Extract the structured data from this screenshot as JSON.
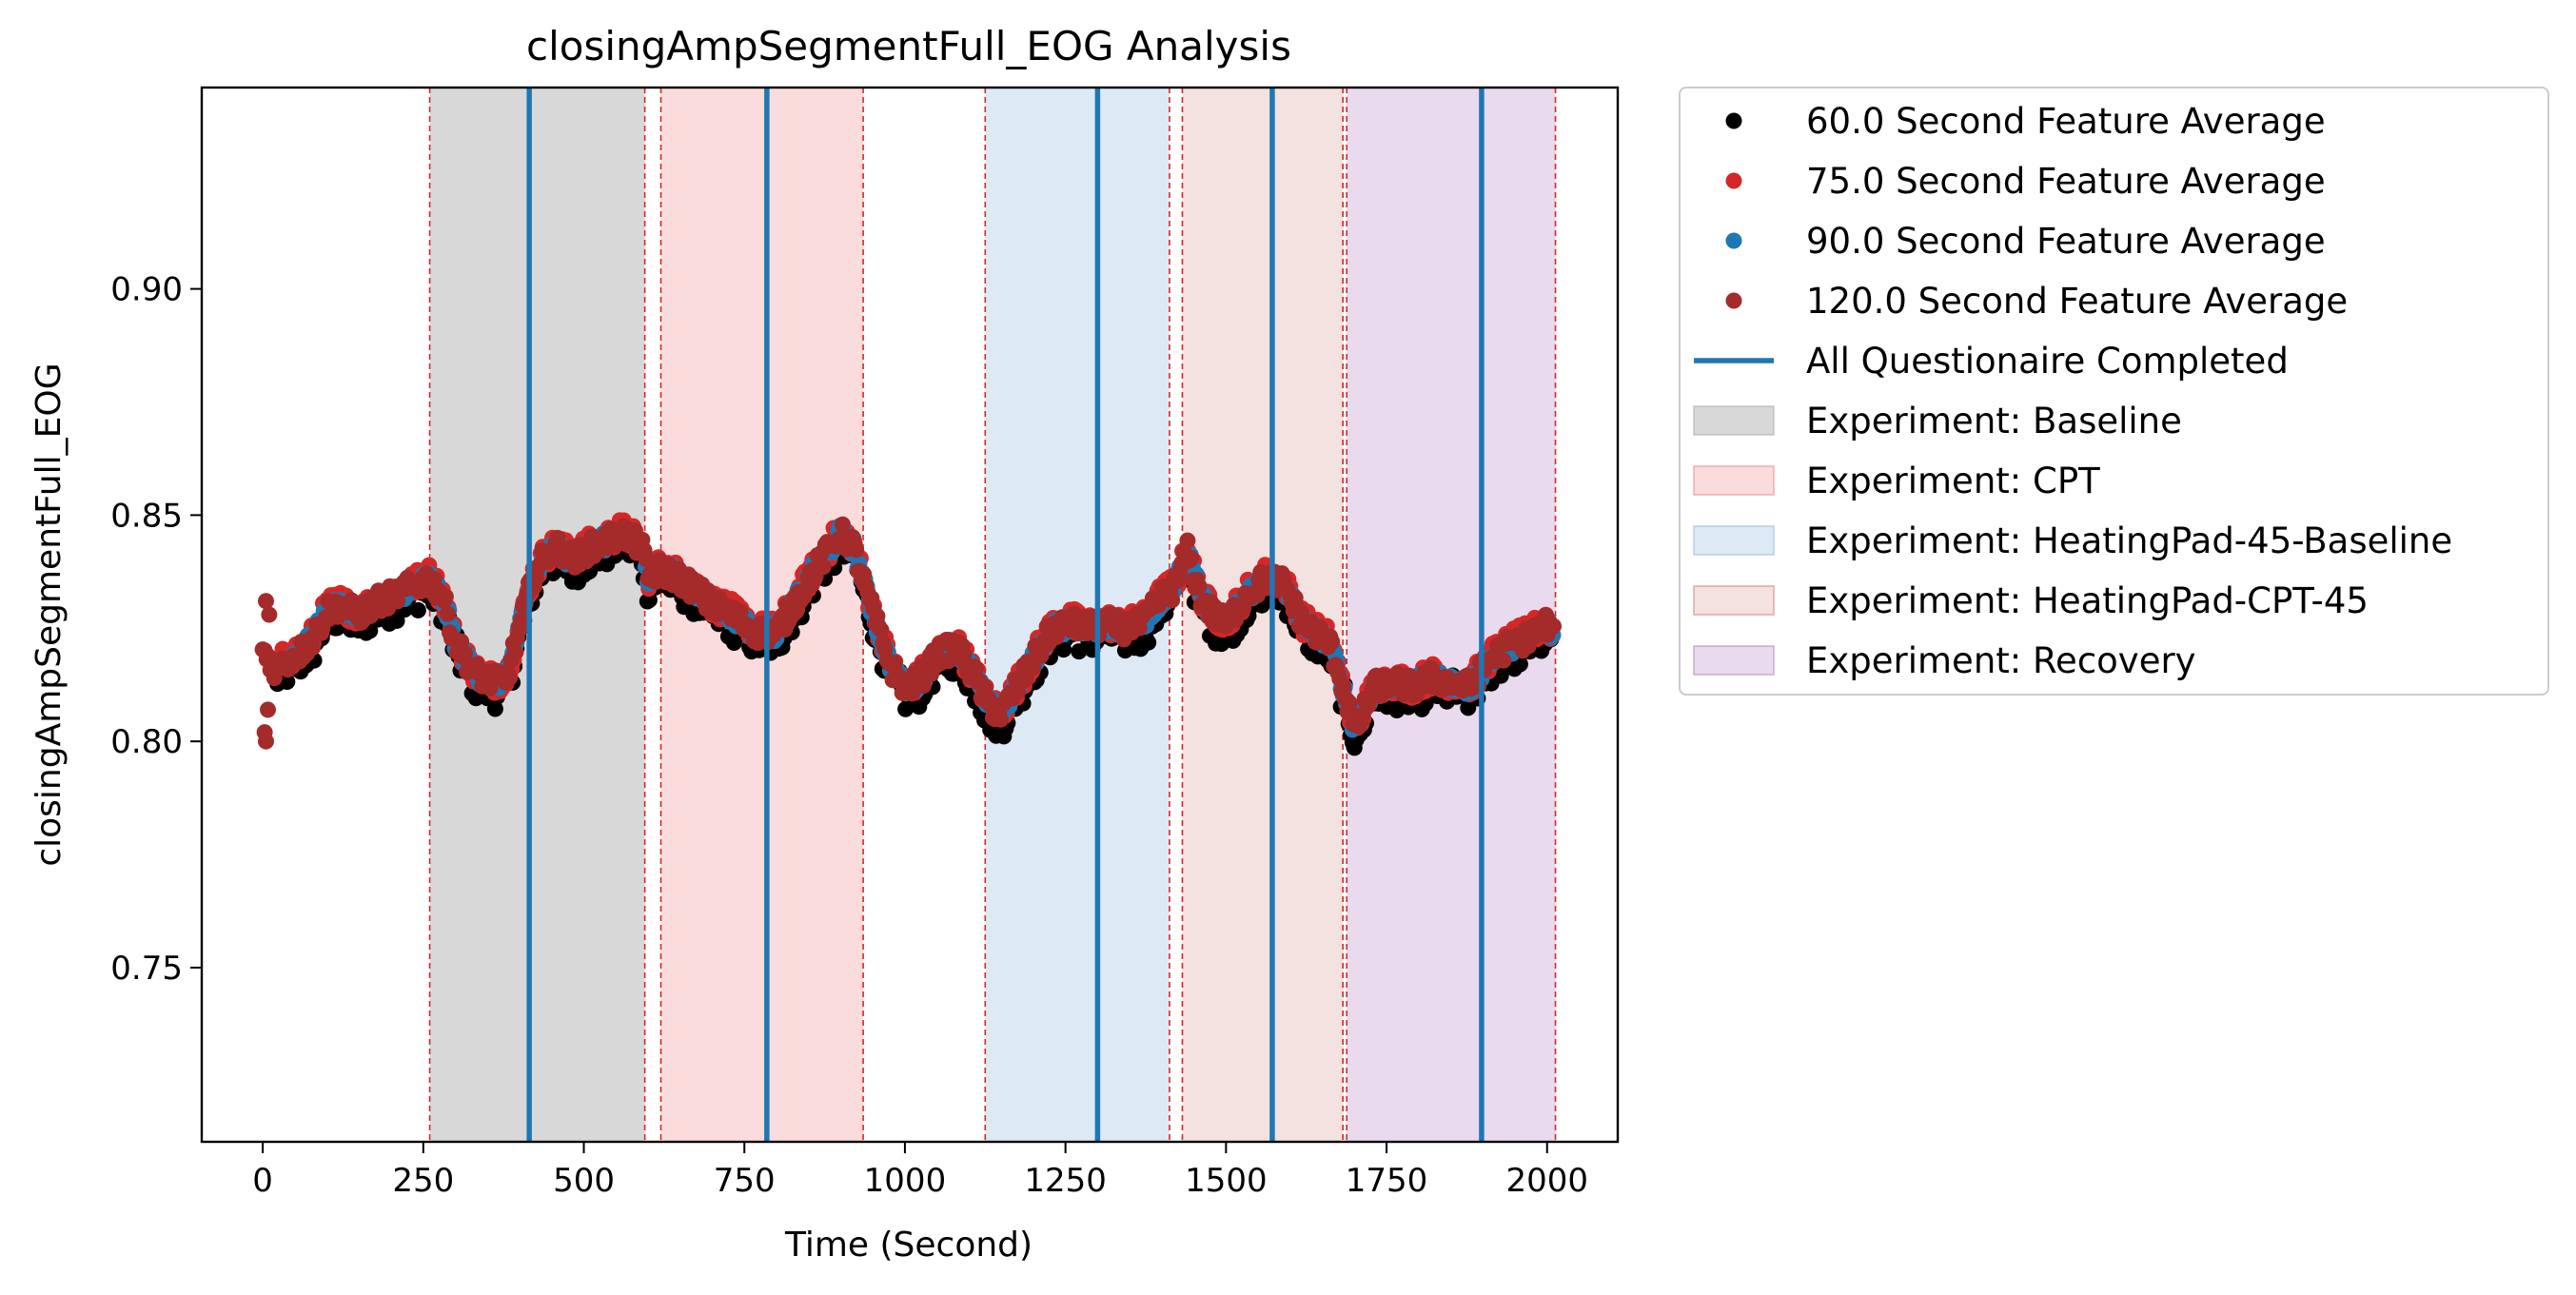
{
  "chart_data": {
    "type": "scatter",
    "title": "closingAmpSegmentFull_EOG Analysis",
    "xlabel": "Time (Second)",
    "ylabel": "closingAmpSegmentFull_EOG",
    "xlim": [
      -95,
      2110
    ],
    "ylim": [
      0.7115,
      0.9445
    ],
    "x_ticks": [
      0,
      250,
      500,
      750,
      1000,
      1250,
      1500,
      1750,
      2000
    ],
    "x_tick_labels": [
      "0",
      "250",
      "500",
      "750",
      "1000",
      "1250",
      "1500",
      "1750",
      "2000"
    ],
    "y_ticks": [
      0.75,
      0.8,
      0.85,
      0.9
    ],
    "y_tick_labels": [
      "0.75",
      "0.80",
      "0.85",
      "0.90"
    ],
    "grid": false,
    "legend_position": "outside-right-top",
    "trend": {
      "x": [
        0,
        10,
        20,
        40,
        60,
        80,
        100,
        120,
        150,
        180,
        200,
        230,
        260,
        280,
        300,
        330,
        360,
        380,
        400,
        420,
        440,
        460,
        480,
        500,
        530,
        560,
        590,
        600,
        620,
        650,
        680,
        700,
        720,
        740,
        770,
        800,
        830,
        860,
        880,
        900,
        920,
        940,
        960,
        980,
        1000,
        1020,
        1050,
        1080,
        1110,
        1130,
        1150,
        1170,
        1200,
        1230,
        1260,
        1290,
        1310,
        1340,
        1370,
        1400,
        1420,
        1440,
        1460,
        1480,
        1500,
        1530,
        1560,
        1590,
        1620,
        1650,
        1660,
        1670,
        1680,
        1690,
        1700,
        1710,
        1730,
        1760,
        1790,
        1820,
        1850,
        1880,
        1910,
        1940,
        1970,
        2000,
        2010
      ],
      "y": [
        0.82,
        0.818,
        0.816,
        0.818,
        0.82,
        0.823,
        0.829,
        0.83,
        0.828,
        0.831,
        0.832,
        0.834,
        0.836,
        0.832,
        0.822,
        0.815,
        0.813,
        0.814,
        0.825,
        0.836,
        0.841,
        0.843,
        0.84,
        0.842,
        0.844,
        0.846,
        0.843,
        0.836,
        0.838,
        0.836,
        0.833,
        0.83,
        0.829,
        0.827,
        0.824,
        0.824,
        0.831,
        0.838,
        0.842,
        0.846,
        0.843,
        0.833,
        0.824,
        0.816,
        0.812,
        0.813,
        0.819,
        0.821,
        0.814,
        0.808,
        0.806,
        0.811,
        0.818,
        0.825,
        0.826,
        0.825,
        0.826,
        0.825,
        0.826,
        0.832,
        0.834,
        0.842,
        0.832,
        0.828,
        0.826,
        0.832,
        0.836,
        0.835,
        0.826,
        0.823,
        0.822,
        0.818,
        0.813,
        0.808,
        0.803,
        0.805,
        0.812,
        0.813,
        0.812,
        0.814,
        0.813,
        0.812,
        0.818,
        0.821,
        0.823,
        0.826,
        0.823
      ]
    },
    "series": [
      {
        "name": "60.0 Second Feature Average",
        "color": "#000000",
        "x_range": [
          20,
          2010
        ],
        "offset": -0.002,
        "noise": 0.004
      },
      {
        "name": "75.0 Second Feature Average",
        "color": "#d62728",
        "x_range": [
          28,
          2010
        ],
        "offset": 0.0005,
        "noise": 0.003
      },
      {
        "name": "90.0 Second Feature Average",
        "color": "#1f77b4",
        "x_range": [
          35,
          2010
        ],
        "offset": 0.0,
        "noise": 0.002
      },
      {
        "name": "120.0 Second Feature Average",
        "color": "#a52a2a",
        "x_range": [
          0,
          2010
        ],
        "offset": 0.0,
        "noise": 0.0025
      }
    ],
    "questionnaire_lines": {
      "name": "All Questionaire Completed",
      "color": "#1f77b4",
      "x": [
        415,
        785,
        1300,
        1572,
        1898
      ]
    },
    "phases": [
      {
        "name": "Experiment: Baseline",
        "color": "#a9a9a9",
        "opacity": 0.45,
        "x0": 260,
        "x1": 595
      },
      {
        "name": "Experiment: CPT",
        "color": "#f08080",
        "opacity": 0.28,
        "x0": 620,
        "x1": 935
      },
      {
        "name": "Experiment: HeatingPad-45-Baseline",
        "color": "#8fb8de",
        "opacity": 0.3,
        "x0": 1125,
        "x1": 1412
      },
      {
        "name": "Experiment: HeatingPad-CPT-45",
        "color": "#c97b73",
        "opacity": 0.22,
        "x0": 1432,
        "x1": 1682
      },
      {
        "name": "Experiment: Recovery",
        "color": "#b57bbd",
        "opacity": 0.28,
        "x0": 1688,
        "x1": 2013
      }
    ],
    "phase_boundaries": [
      260,
      595,
      620,
      935,
      1125,
      1412,
      1432,
      1682,
      1688,
      2013
    ],
    "phase_boundary_color": "#d62728"
  }
}
